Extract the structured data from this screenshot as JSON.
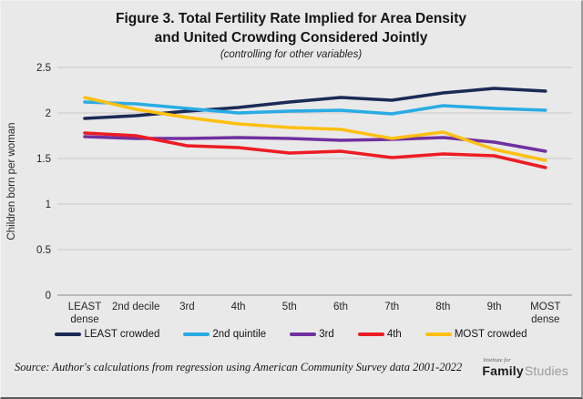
{
  "figure": {
    "title_line1": "Figure 3. Total Fertility Rate Implied for Area Density",
    "title_line2": "and United Crowding Considered Jointly",
    "subtitle": "(controlling for other variables)"
  },
  "chart_data": {
    "type": "line",
    "title": "Figure 3. Total Fertility Rate Implied for Area Density and United Crowding Considered Jointly",
    "subtitle": "(controlling for other variables)",
    "xlabel": "",
    "ylabel": "Children born per woman",
    "ylim": [
      0,
      2.5
    ],
    "yticks": [
      0,
      0.5,
      1,
      1.5,
      2,
      2.5
    ],
    "grid": true,
    "legend_position": "bottom",
    "categories": [
      "LEAST dense",
      "2nd decile",
      "3rd",
      "4th",
      "5th",
      "6th",
      "7th",
      "8th",
      "9th",
      "MOST dense"
    ],
    "x_tick_lines": [
      [
        "LEAST",
        "dense"
      ],
      [
        "2nd decile"
      ],
      [
        "3rd"
      ],
      [
        "4th"
      ],
      [
        "5th"
      ],
      [
        "6th"
      ],
      [
        "7th"
      ],
      [
        "8th"
      ],
      [
        "9th"
      ],
      [
        "MOST",
        "dense"
      ]
    ],
    "series": [
      {
        "name": "LEAST crowded",
        "color": "#1b2a55",
        "values": [
          1.94,
          1.97,
          2.02,
          2.06,
          2.12,
          2.17,
          2.14,
          2.22,
          2.27,
          2.24
        ]
      },
      {
        "name": "2nd quintile",
        "color": "#29ace3",
        "values": [
          2.12,
          2.1,
          2.05,
          2.0,
          2.02,
          2.03,
          1.99,
          2.08,
          2.05,
          2.03
        ]
      },
      {
        "name": "3rd",
        "color": "#7030a0",
        "values": [
          1.74,
          1.72,
          1.72,
          1.73,
          1.72,
          1.7,
          1.71,
          1.73,
          1.68,
          1.58
        ]
      },
      {
        "name": "4th",
        "color": "#ed1c24",
        "values": [
          1.78,
          1.75,
          1.64,
          1.62,
          1.56,
          1.58,
          1.51,
          1.55,
          1.53,
          1.4
        ]
      },
      {
        "name": "MOST crowded",
        "color": "#fdc010",
        "values": [
          2.17,
          2.04,
          1.95,
          1.88,
          1.84,
          1.82,
          1.72,
          1.79,
          1.6,
          1.48
        ]
      }
    ],
    "colors": {
      "background": "#e9e9e9",
      "gridline": "#c9c9c9",
      "axis": "#9f9f9f"
    }
  },
  "footer": {
    "source": "Source: Author's calculations from regression using American Community Survey data 2001-2022",
    "logo_top": "Institute for",
    "logo_bold": "Family",
    "logo_light": "Studies"
  }
}
